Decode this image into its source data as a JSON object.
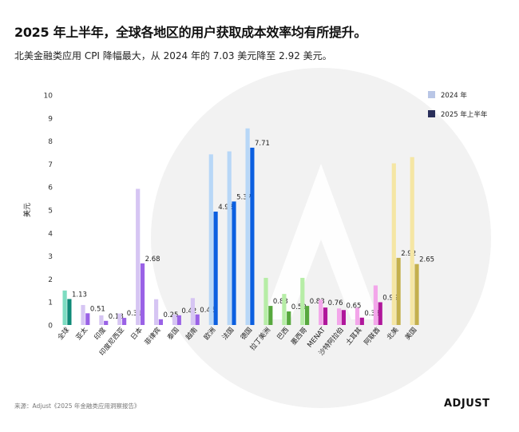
{
  "header": {
    "title": "2025 年上半年，全球各地区的用户获取成本效率均有所提升。",
    "subtitle": "北美金融类应用 CPI 降幅最大，从 2024 年的 7.03 美元降至 2.92 美元。"
  },
  "footer": {
    "source": "来源：Adjust《2025 年金融类应用洞察报告》",
    "logo_text": "ADJUST"
  },
  "colors": {
    "watermark": "#f2f2f2",
    "legend_2024": "#b9c6e6",
    "legend_2025": "#2a2f5a",
    "groups": [
      {
        "light": "#7ddcc1",
        "dark": "#0f8a77"
      },
      {
        "light": "#d6c5f3",
        "dark": "#9a62e6"
      },
      {
        "light": "#b8d7f7",
        "dark": "#0b5fe0"
      },
      {
        "light": "#b6eda6",
        "dark": "#57a83e"
      },
      {
        "light": "#f3a6ea",
        "dark": "#b0179b"
      },
      {
        "light": "#f5e6a4",
        "dark": "#c4b04d"
      }
    ]
  },
  "chart_data": {
    "type": "bar",
    "title": "2025 年上半年，全球各地区的用户获取成本效率均有所提升。",
    "xlabel": "",
    "ylabel": "美元",
    "ylim": [
      0,
      10
    ],
    "yticks": [
      0,
      1,
      2,
      3,
      4,
      5,
      6,
      7,
      8,
      9,
      10
    ],
    "grid": false,
    "legend_position": "top-right",
    "categories": [
      "全球",
      "亚太",
      "印度",
      "印度尼西亚",
      "日本",
      "菲律宾",
      "泰国",
      "越南",
      "欧洲",
      "法国",
      "德国",
      "拉丁美洲",
      "巴西",
      "墨西哥",
      "MENAT",
      "沙特阿拉伯",
      "土耳其",
      "阿联酋",
      "北美",
      "美国"
    ],
    "color_groups": [
      0,
      1,
      1,
      1,
      1,
      1,
      1,
      1,
      2,
      2,
      2,
      3,
      3,
      3,
      4,
      4,
      4,
      4,
      5,
      5
    ],
    "series": [
      {
        "name": "2024 年",
        "values": [
          1.5,
          0.87,
          0.42,
          0.5,
          5.92,
          1.12,
          0.45,
          1.17,
          7.42,
          7.55,
          8.55,
          2.05,
          1.35,
          2.05,
          1.1,
          0.72,
          0.75,
          1.72,
          7.03,
          7.3
        ]
      },
      {
        "name": "2025 年上半年",
        "values": [
          1.13,
          0.51,
          0.18,
          0.31,
          2.68,
          0.25,
          0.42,
          0.46,
          4.93,
          5.37,
          7.71,
          0.83,
          0.59,
          0.83,
          0.76,
          0.65,
          0.32,
          0.99,
          2.92,
          2.65
        ]
      }
    ],
    "data_labels": [
      "1.13",
      "0.51",
      "0.18",
      "0.31",
      "2.68",
      "0.25",
      "0.42",
      "0.46",
      "4.93",
      "5.37",
      "7.71",
      "0.83",
      "0.59",
      "0.83",
      "0.76",
      "0.65",
      "0.32",
      "0.99",
      "2.92",
      "2.65"
    ]
  }
}
